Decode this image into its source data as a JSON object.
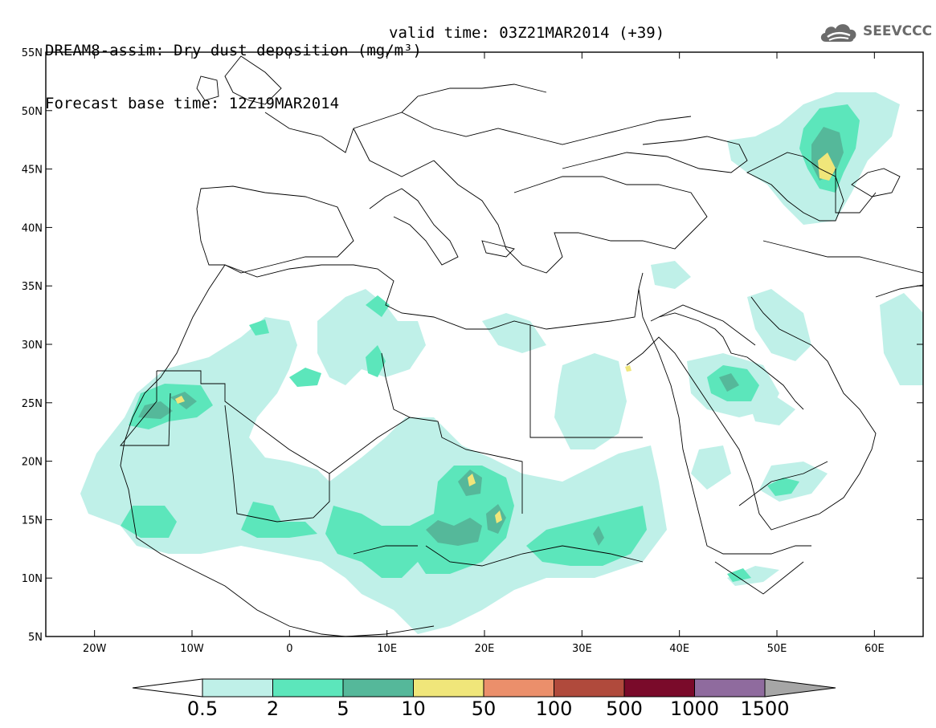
{
  "header": {
    "line1": "DREAM8-assim: Dry dust deposition (mg/m³)",
    "line2": "Forecast base time: 12Z19MAR2014",
    "valid": "valid time: 03Z21MAR2014 (+39)"
  },
  "logo": {
    "text": "SEEVCCC",
    "icon": "cloud-logo-icon"
  },
  "map": {
    "lat_labels": [
      "55N",
      "50N",
      "45N",
      "40N",
      "35N",
      "30N",
      "25N",
      "20N",
      "15N",
      "10N",
      "5N"
    ],
    "lon_labels": [
      "20W",
      "10W",
      "0",
      "10E",
      "20E",
      "30E",
      "40E",
      "50E",
      "60E"
    ],
    "lat_range": [
      5,
      55
    ],
    "lon_range": [
      -25,
      65
    ]
  },
  "legend": {
    "labels": [
      "0.5",
      "2",
      "5",
      "10",
      "50",
      "100",
      "500",
      "1000",
      "1500"
    ],
    "colors": [
      "#bff0e8",
      "#5ce6bb",
      "#55b89a",
      "#f0e67a",
      "#eb8f6b",
      "#b04a3c",
      "#7a0a2a",
      "#8f6b9e",
      "#a6a6a6"
    ]
  }
}
